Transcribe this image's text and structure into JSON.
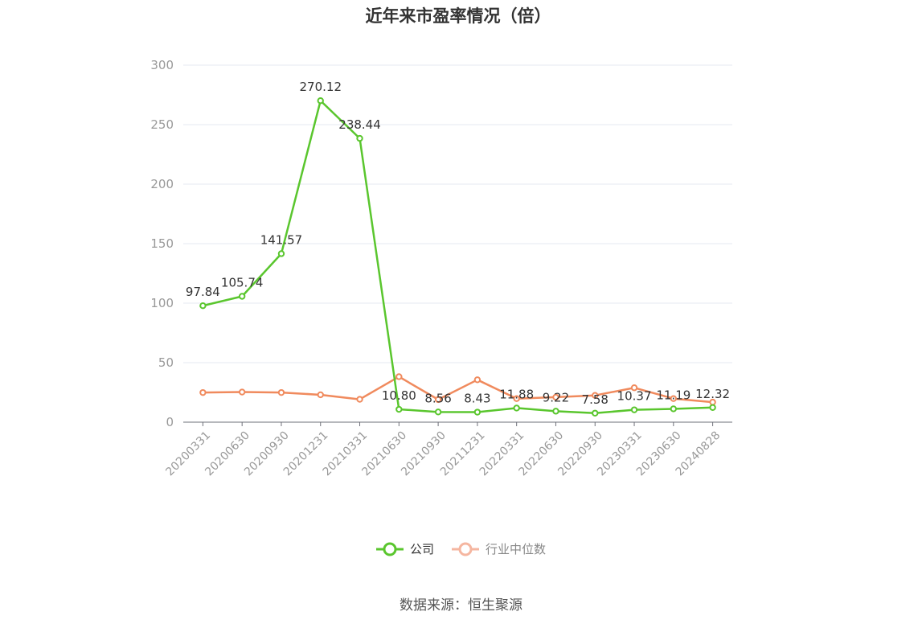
{
  "title": "近年来市盈率情况（倍）",
  "source": "数据来源：恒生聚源",
  "colors": {
    "company": "#5ac62e",
    "industry": "#f08a5d",
    "industry_legend": "#f5b6a0",
    "grid": "#e6e9f0",
    "axis": "#6e7079",
    "tick_text": "#999999"
  },
  "legend": {
    "company": "公司",
    "industry": "行业中位数"
  },
  "chart_data": {
    "type": "line",
    "categories": [
      "20200331",
      "20200630",
      "20200930",
      "20201231",
      "20210331",
      "20210630",
      "20210930",
      "20211231",
      "20220331",
      "20220630",
      "20220930",
      "20230331",
      "20230630",
      "20240828"
    ],
    "ylim": [
      0,
      300
    ],
    "yticks": [
      0,
      50,
      100,
      150,
      200,
      250,
      300
    ],
    "grid": true,
    "legend_position": "bottom",
    "series": [
      {
        "name": "公司",
        "values": [
          97.84,
          105.74,
          141.57,
          270.12,
          238.44,
          10.8,
          8.56,
          8.43,
          11.88,
          9.22,
          7.58,
          10.37,
          11.19,
          12.32
        ],
        "labels": [
          "97.84",
          "105.74",
          "141.57",
          "270.12",
          "238.44",
          "10.80",
          "8.56",
          "8.43",
          "11.88",
          "9.22",
          "7.58",
          "10.37",
          "11.19",
          "12.32"
        ]
      },
      {
        "name": "行业中位数",
        "values": [
          24.9,
          25.3,
          24.9,
          23.0,
          19.2,
          38.2,
          19.0,
          35.6,
          19.8,
          21.0,
          22.5,
          28.9,
          19.8,
          16.8
        ]
      }
    ]
  }
}
